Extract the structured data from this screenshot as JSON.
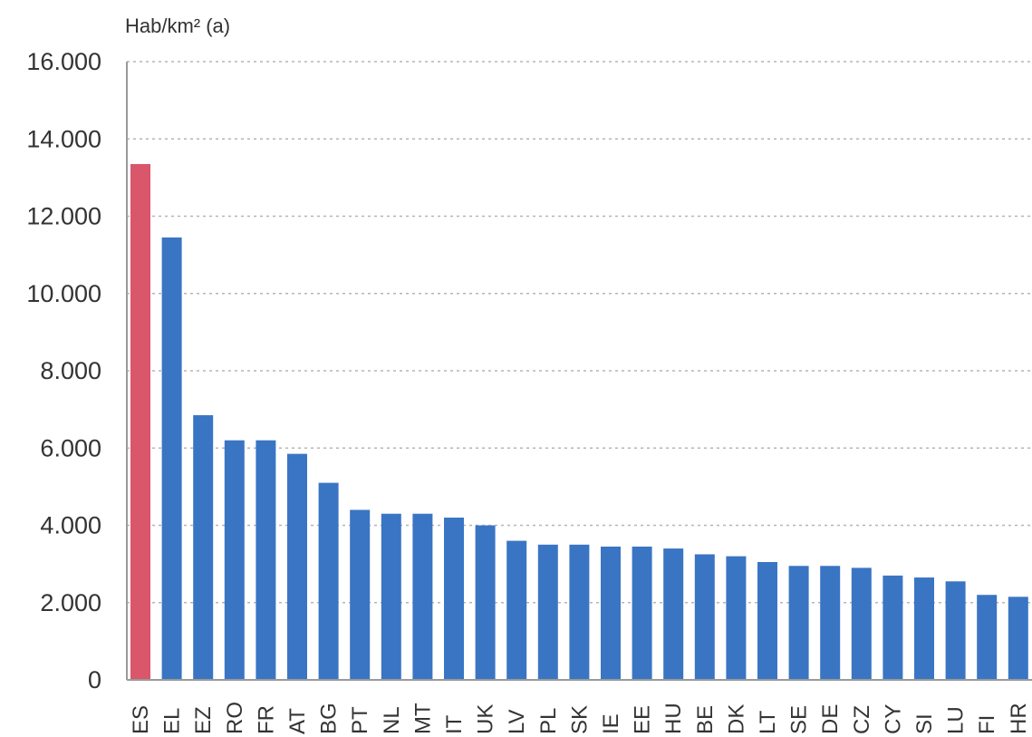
{
  "chart_data": {
    "type": "bar",
    "ylabel": "Hab/km² (a)",
    "ylim": [
      0,
      16000
    ],
    "yticks": [
      0,
      2000,
      4000,
      6000,
      8000,
      10000,
      12000,
      14000,
      16000
    ],
    "ytick_labels": [
      "0",
      "2.000",
      "4.000",
      "6.000",
      "8.000",
      "10.000",
      "12.000",
      "14.000",
      "16.000"
    ],
    "grid": true,
    "categories": [
      "ES",
      "EL",
      "EZ",
      "RO",
      "FR",
      "AT",
      "BG",
      "PT",
      "NL",
      "MT",
      "IT",
      "UK",
      "LV",
      "PL",
      "SK",
      "IE",
      "EE",
      "HU",
      "BE",
      "DK",
      "LT",
      "SE",
      "DE",
      "CZ",
      "CY",
      "SI",
      "LU",
      "FI",
      "HR"
    ],
    "values": [
      13350,
      11450,
      6850,
      6200,
      6200,
      5850,
      5100,
      4400,
      4300,
      4300,
      4200,
      4000,
      3600,
      3500,
      3500,
      3450,
      3450,
      3400,
      3250,
      3200,
      3050,
      2950,
      2950,
      2900,
      2700,
      2650,
      2550,
      2200,
      2150
    ],
    "highlight_category": "ES",
    "colors": {
      "highlight": "#d9566b",
      "default": "#3a75c4",
      "grid": "#b5b5b5",
      "axis": "#9a9a9a"
    }
  }
}
